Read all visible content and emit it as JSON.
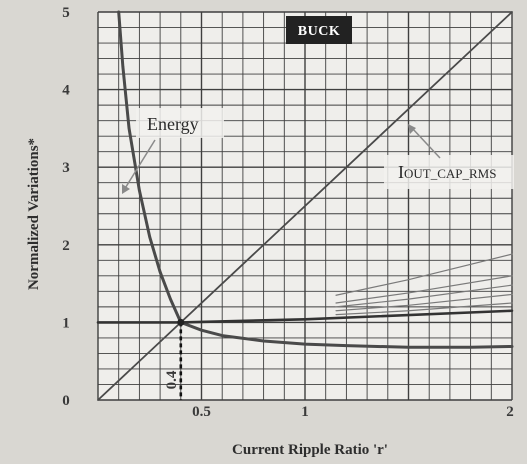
{
  "chart_data": {
    "type": "line",
    "title": "BUCK",
    "xlabel": "Current Ripple Ratio 'r'",
    "ylabel": "Normalized Variations*",
    "xlim": [
      0,
      2
    ],
    "ylim": [
      0,
      5
    ],
    "x_ticks": [
      "0.5",
      "1",
      "2"
    ],
    "x_tick_values": [
      0.5,
      1,
      2
    ],
    "y_ticks": [
      "0",
      "1",
      "2",
      "3",
      "4",
      "5"
    ],
    "y_tick_values": [
      0,
      1,
      2,
      3,
      4,
      5
    ],
    "grid": true,
    "series": [
      {
        "name": "Energy",
        "x": [
          0.1,
          0.12,
          0.15,
          0.2,
          0.25,
          0.3,
          0.35,
          0.4,
          0.5,
          0.6,
          0.8,
          1.0,
          1.2,
          1.5,
          1.8,
          2.0
        ],
        "y": [
          5.0,
          4.3,
          3.5,
          2.7,
          2.1,
          1.65,
          1.3,
          1.0,
          0.9,
          0.83,
          0.76,
          0.72,
          0.7,
          0.68,
          0.68,
          0.69
        ]
      },
      {
        "name": "IOUT_CAP_RMS",
        "x": [
          0,
          2
        ],
        "y": [
          0,
          5.0
        ]
      },
      {
        "x": [
          0,
          0.4,
          1.0,
          2.0
        ],
        "y": [
          1.0,
          1.0,
          1.04,
          1.15
        ]
      },
      {
        "x": [
          1.15,
          1.5,
          2.0
        ],
        "y": [
          1.35,
          1.55,
          1.88
        ]
      },
      {
        "x": [
          1.15,
          1.5,
          2.0
        ],
        "y": [
          1.25,
          1.38,
          1.6
        ]
      },
      {
        "x": [
          1.15,
          1.5,
          2.0
        ],
        "y": [
          1.2,
          1.3,
          1.48
        ]
      },
      {
        "x": [
          1.15,
          1.5,
          2.0
        ],
        "y": [
          1.15,
          1.22,
          1.36
        ]
      },
      {
        "x": [
          1.15,
          1.5,
          2.0
        ],
        "y": [
          1.1,
          1.15,
          1.25
        ]
      }
    ],
    "annotations": [
      {
        "text": "Energy",
        "points_to": {
          "x": 0.13,
          "y": 2.85
        }
      },
      {
        "text": "IOUT_CAP_RMS",
        "points_to": {
          "x": 1.3,
          "y": 3.5
        }
      },
      {
        "text": "0.4",
        "at": {
          "x": 0.4,
          "y": 1.0
        }
      }
    ],
    "highlight_point": {
      "x": 0.4,
      "y": 1.0
    },
    "colors": {
      "background": "#d9d7d2",
      "plot_background": "#efeeeb",
      "grid": "#3f3f3f",
      "curve": "#4a4a4a",
      "line": "#555555",
      "badge": "#222222"
    }
  }
}
